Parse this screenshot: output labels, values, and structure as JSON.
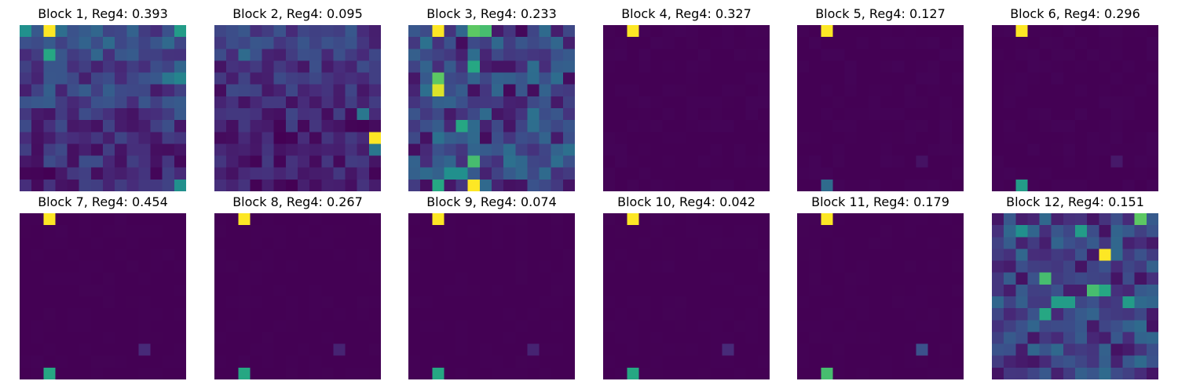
{
  "colormap": "viridis",
  "chart_data": [
    {
      "type": "heatmap",
      "title": "Block 1, Reg4: 0.393",
      "grid_size": [
        14,
        14
      ],
      "colormap": "viridis",
      "value_range": [
        0,
        1
      ],
      "hot_cells": [
        {
          "row": 0,
          "col": 2,
          "value": 1.0
        },
        {
          "row": 0,
          "col": 0,
          "value": 0.5
        },
        {
          "row": 0,
          "col": 13,
          "value": 0.55
        },
        {
          "row": 2,
          "col": 2,
          "value": 0.6
        },
        {
          "row": 4,
          "col": 13,
          "value": 0.45
        },
        {
          "row": 4,
          "col": 12,
          "value": 0.4
        },
        {
          "row": 13,
          "col": 13,
          "value": 0.5
        }
      ],
      "background": {
        "level": 0.15,
        "variation": 0.12,
        "gradient": "brighter at top, darker at bottom"
      }
    },
    {
      "type": "heatmap",
      "title": "Block 2, Reg4: 0.095",
      "grid_size": [
        14,
        14
      ],
      "colormap": "viridis",
      "value_range": [
        0,
        1
      ],
      "hot_cells": [
        {
          "row": 9,
          "col": 13,
          "value": 1.0
        },
        {
          "row": 10,
          "col": 13,
          "value": 0.4
        },
        {
          "row": 2,
          "col": 2,
          "value": 0.35
        },
        {
          "row": 7,
          "col": 12,
          "value": 0.4
        }
      ],
      "background": {
        "level": 0.1,
        "variation": 0.1,
        "gradient": "slightly brighter at top"
      }
    },
    {
      "type": "heatmap",
      "title": "Block 3, Reg4: 0.233",
      "grid_size": [
        14,
        14
      ],
      "colormap": "viridis",
      "value_range": [
        0,
        1
      ],
      "hot_cells": [
        {
          "row": 0,
          "col": 2,
          "value": 1.0
        },
        {
          "row": 0,
          "col": 5,
          "value": 0.75
        },
        {
          "row": 0,
          "col": 6,
          "value": 0.7
        },
        {
          "row": 4,
          "col": 2,
          "value": 0.75
        },
        {
          "row": 5,
          "col": 2,
          "value": 0.95
        },
        {
          "row": 3,
          "col": 5,
          "value": 0.6
        },
        {
          "row": 8,
          "col": 4,
          "value": 0.6
        },
        {
          "row": 11,
          "col": 5,
          "value": 0.7
        },
        {
          "row": 13,
          "col": 2,
          "value": 0.6
        },
        {
          "row": 13,
          "col": 5,
          "value": 1.0
        },
        {
          "row": 12,
          "col": 3,
          "value": 0.5
        },
        {
          "row": 12,
          "col": 4,
          "value": 0.5
        }
      ],
      "background": {
        "level": 0.2,
        "variation": 0.18,
        "gradient": "uniform"
      }
    },
    {
      "type": "heatmap",
      "title": "Block 4, Reg4: 0.327",
      "grid_size": [
        14,
        14
      ],
      "colormap": "viridis",
      "value_range": [
        0,
        1
      ],
      "hot_cells": [
        {
          "row": 0,
          "col": 2,
          "value": 1.0
        }
      ],
      "background": {
        "level": 0.0,
        "variation": 0.01,
        "gradient": "uniform"
      }
    },
    {
      "type": "heatmap",
      "title": "Block 5, Reg4: 0.127",
      "grid_size": [
        14,
        14
      ],
      "colormap": "viridis",
      "value_range": [
        0,
        1
      ],
      "hot_cells": [
        {
          "row": 0,
          "col": 2,
          "value": 1.0
        },
        {
          "row": 13,
          "col": 2,
          "value": 0.35
        },
        {
          "row": 11,
          "col": 10,
          "value": 0.05
        }
      ],
      "background": {
        "level": 0.0,
        "variation": 0.01,
        "gradient": "uniform"
      }
    },
    {
      "type": "heatmap",
      "title": "Block 6, Reg4: 0.296",
      "grid_size": [
        14,
        14
      ],
      "colormap": "viridis",
      "value_range": [
        0,
        1
      ],
      "hot_cells": [
        {
          "row": 0,
          "col": 2,
          "value": 1.0
        },
        {
          "row": 13,
          "col": 2,
          "value": 0.55
        },
        {
          "row": 11,
          "col": 10,
          "value": 0.07
        }
      ],
      "background": {
        "level": 0.0,
        "variation": 0.01,
        "gradient": "uniform"
      }
    },
    {
      "type": "heatmap",
      "title": "Block 7, Reg4: 0.454",
      "grid_size": [
        14,
        14
      ],
      "colormap": "viridis",
      "value_range": [
        0,
        1
      ],
      "hot_cells": [
        {
          "row": 0,
          "col": 2,
          "value": 1.0
        },
        {
          "row": 13,
          "col": 2,
          "value": 0.6
        },
        {
          "row": 11,
          "col": 10,
          "value": 0.12
        }
      ],
      "background": {
        "level": 0.0,
        "variation": 0.005,
        "gradient": "uniform"
      }
    },
    {
      "type": "heatmap",
      "title": "Block 8, Reg4: 0.267",
      "grid_size": [
        14,
        14
      ],
      "colormap": "viridis",
      "value_range": [
        0,
        1
      ],
      "hot_cells": [
        {
          "row": 0,
          "col": 2,
          "value": 1.0
        },
        {
          "row": 13,
          "col": 2,
          "value": 0.6
        },
        {
          "row": 11,
          "col": 10,
          "value": 0.1
        }
      ],
      "background": {
        "level": 0.0,
        "variation": 0.005,
        "gradient": "uniform"
      }
    },
    {
      "type": "heatmap",
      "title": "Block 9, Reg4: 0.074",
      "grid_size": [
        14,
        14
      ],
      "colormap": "viridis",
      "value_range": [
        0,
        1
      ],
      "hot_cells": [
        {
          "row": 0,
          "col": 2,
          "value": 1.0
        },
        {
          "row": 13,
          "col": 2,
          "value": 0.6
        },
        {
          "row": 11,
          "col": 10,
          "value": 0.1
        }
      ],
      "background": {
        "level": 0.0,
        "variation": 0.005,
        "gradient": "uniform"
      }
    },
    {
      "type": "heatmap",
      "title": "Block 10, Reg4: 0.042",
      "grid_size": [
        14,
        14
      ],
      "colormap": "viridis",
      "value_range": [
        0,
        1
      ],
      "hot_cells": [
        {
          "row": 0,
          "col": 2,
          "value": 1.0
        },
        {
          "row": 13,
          "col": 2,
          "value": 0.6
        },
        {
          "row": 11,
          "col": 10,
          "value": 0.12
        }
      ],
      "background": {
        "level": 0.0,
        "variation": 0.005,
        "gradient": "uniform"
      }
    },
    {
      "type": "heatmap",
      "title": "Block 11, Reg4: 0.179",
      "grid_size": [
        14,
        14
      ],
      "colormap": "viridis",
      "value_range": [
        0,
        1
      ],
      "hot_cells": [
        {
          "row": 0,
          "col": 2,
          "value": 1.0
        },
        {
          "row": 13,
          "col": 2,
          "value": 0.7
        },
        {
          "row": 11,
          "col": 10,
          "value": 0.25
        }
      ],
      "background": {
        "level": 0.0,
        "variation": 0.005,
        "gradient": "uniform"
      }
    },
    {
      "type": "heatmap",
      "title": "Block 12, Reg4: 0.151",
      "grid_size": [
        14,
        14
      ],
      "colormap": "viridis",
      "value_range": [
        0,
        1
      ],
      "hot_cells": [
        {
          "row": 3,
          "col": 9,
          "value": 1.0
        },
        {
          "row": 0,
          "col": 12,
          "value": 0.75
        },
        {
          "row": 5,
          "col": 4,
          "value": 0.7
        },
        {
          "row": 6,
          "col": 8,
          "value": 0.7
        },
        {
          "row": 6,
          "col": 9,
          "value": 0.6
        },
        {
          "row": 7,
          "col": 5,
          "value": 0.55
        },
        {
          "row": 7,
          "col": 6,
          "value": 0.55
        },
        {
          "row": 8,
          "col": 4,
          "value": 0.6
        },
        {
          "row": 7,
          "col": 11,
          "value": 0.55
        },
        {
          "row": 1,
          "col": 2,
          "value": 0.5
        },
        {
          "row": 1,
          "col": 7,
          "value": 0.55
        }
      ],
      "background": {
        "level": 0.2,
        "variation": 0.15,
        "gradient": "uniform"
      }
    }
  ]
}
